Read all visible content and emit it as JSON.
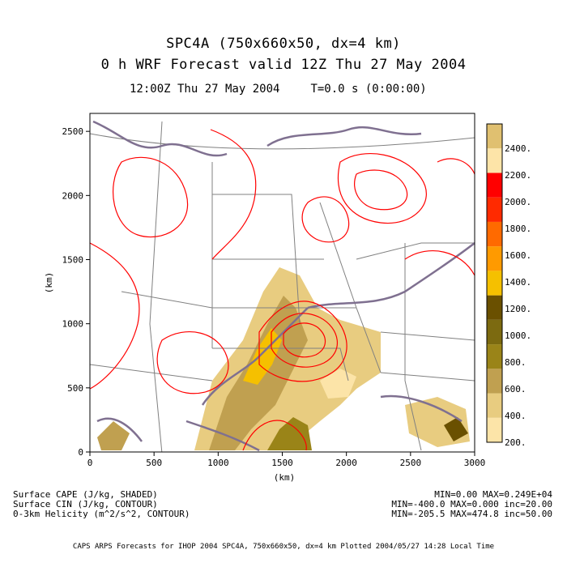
{
  "header": {
    "title_line1": "SPC4A (750x660x50, dx=4 km)",
    "title_line2": "0 h  WRF Forecast valid 12Z Thu 27 May 2004",
    "time_left": "12:00Z Thu 27 May 2004",
    "time_right": "T=0.0 s (0:00:00)"
  },
  "chart_data": {
    "type": "heatmap",
    "xlabel": "(km)",
    "ylabel": "(km)",
    "xlim": [
      0,
      3000
    ],
    "ylim": [
      0,
      2640
    ],
    "x_ticks": [
      0,
      500,
      1000,
      1500,
      2000,
      2500,
      3000
    ],
    "y_ticks": [
      0,
      500,
      1000,
      1500,
      2000,
      2500
    ],
    "colorbar": {
      "levels": [
        200,
        400,
        600,
        800,
        1000,
        1200,
        1400,
        1600,
        1800,
        2000,
        2200,
        2400
      ],
      "tick_labels": [
        "200.",
        "400.",
        "600.",
        "800.",
        "1000.",
        "1200.",
        "1400.",
        "1600.",
        "1800.",
        "2000.",
        "2200.",
        "2400."
      ],
      "colors": [
        "#fce4a8",
        "#e8cc80",
        "#c0a050",
        "#9a8418",
        "#7c6a10",
        "#6a5000",
        "#f5c000",
        "#ff9a00",
        "#ff6a00",
        "#ff2a00",
        "#ff0000",
        "#fde4a8",
        "#e0c070"
      ]
    },
    "contour_colors": {
      "cin": "#7f7090",
      "helicity": "#ff0000",
      "borders": "#808080"
    },
    "fields": [
      {
        "name": "Surface CAPE (J/kg, SHADED)",
        "stats": "MIN=0.00 MAX=0.249E+04"
      },
      {
        "name": "Surface CIN (J/kg, CONTOUR)",
        "stats": "MIN=-400.0 MAX=0.000 inc=20.00"
      },
      {
        "name": "0-3km Helicity (m^2/s^2, CONTOUR)",
        "stats": "MIN=-205.5 MAX=474.8 inc=50.00"
      }
    ]
  },
  "footer": {
    "credit": "CAPS ARPS Forecasts for IHOP 2004  SPC4A, 750x660x50, dx=4 km  Plotted 2004/05/27 14:28 Local Time"
  }
}
